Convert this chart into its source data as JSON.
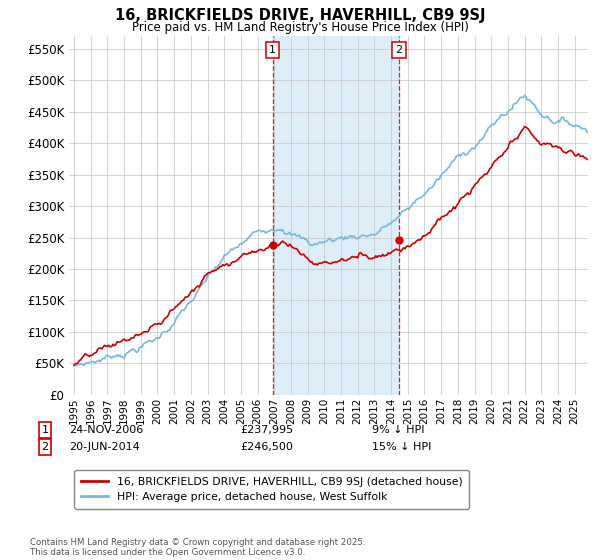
{
  "title": "16, BRICKFIELDS DRIVE, HAVERHILL, CB9 9SJ",
  "subtitle": "Price paid vs. HM Land Registry's House Price Index (HPI)",
  "ylim": [
    0,
    570000
  ],
  "yticks": [
    0,
    50000,
    100000,
    150000,
    200000,
    250000,
    300000,
    350000,
    400000,
    450000,
    500000,
    550000
  ],
  "sale1_date": "24-NOV-2006",
  "sale1_price": 237995,
  "sale1_pct": "9% ↓ HPI",
  "sale1_year": 2006.9,
  "sale2_date": "20-JUN-2014",
  "sale2_price": 246500,
  "sale2_pct": "15% ↓ HPI",
  "sale2_year": 2014.47,
  "legend_label1": "16, BRICKFIELDS DRIVE, HAVERHILL, CB9 9SJ (detached house)",
  "legend_label2": "HPI: Average price, detached house, West Suffolk",
  "footer": "Contains HM Land Registry data © Crown copyright and database right 2025.\nThis data is licensed under the Open Government Licence v3.0.",
  "hpi_color": "#7ab8d9",
  "price_color": "#cc0000",
  "shade_color": "#ddeef8",
  "vline_color": "#cc0000",
  "background_color": "#ffffff",
  "grid_color": "#cccccc",
  "xlim_left": 1994.7,
  "xlim_right": 2025.8,
  "n_points": 372
}
